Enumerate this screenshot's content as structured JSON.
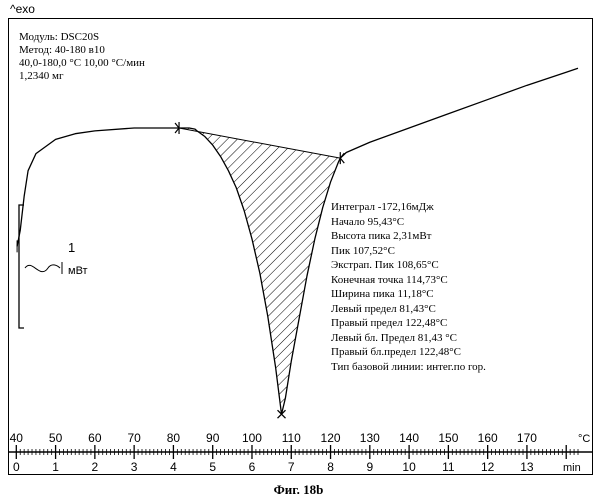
{
  "header": {
    "exo_label": "^exo"
  },
  "info": {
    "module": "Модуль:   DSC20S",
    "method": "Метод:  40-180 в10",
    "range": "40,0-180,0 °C 10,00 °C/мин",
    "mass": "1,2340 мг"
  },
  "scale_bar": {
    "value": "1",
    "unit": "мВт"
  },
  "results": [
    "Интеграл    -172,16мДж",
    "Начало          95,43°C",
    "Высота пика  2,31мВт",
    "Пик               107,52°C",
    "Экстрап. Пик  108,65°C",
    "Конечная точка 114,73°C",
    "Ширина пика      11,18°C",
    "Левый предел  81,43°C",
    "Правый предел  122,48°C",
    "Левый бл. Предел 81,43 °C",
    "Правый бл.предел  122,48°C",
    "Тип базовой линии:  интег.по гор."
  ],
  "caption": "Фиг. 18b",
  "chart_data": {
    "type": "line",
    "x_temp_label": "°C",
    "x_time_label": "min",
    "temp_ticks": [
      40,
      50,
      60,
      70,
      80,
      90,
      100,
      110,
      120,
      130,
      140,
      150,
      160,
      170
    ],
    "time_ticks": [
      0,
      1,
      2,
      3,
      4,
      5,
      6,
      7,
      8,
      9,
      10,
      11,
      12,
      13
    ],
    "xlim": [
      40,
      183
    ],
    "integration_limits": [
      81.43,
      122.48
    ],
    "peak_temperature": 107.52,
    "curve": {
      "x": [
        40.2,
        41,
        42,
        43,
        45,
        50,
        55,
        60,
        70,
        80,
        84,
        85.5,
        86,
        88,
        90,
        92,
        94,
        96,
        98,
        100,
        102,
        104,
        106,
        107.52,
        108.5,
        110,
        112,
        114,
        116,
        118,
        120,
        122,
        122.48,
        124,
        130,
        140,
        150,
        160,
        170,
        180,
        183
      ],
      "y": [
        -2.08,
        -1.8,
        -1.2,
        -0.75,
        -0.45,
        -0.2,
        -0.1,
        -0.05,
        0.0,
        0.0,
        0.0,
        -0.02,
        -0.05,
        -0.15,
        -0.3,
        -0.5,
        -0.75,
        -1.05,
        -1.45,
        -1.95,
        -2.55,
        -3.3,
        -4.2,
        -5.03,
        -4.75,
        -4.1,
        -3.35,
        -2.6,
        -1.95,
        -1.4,
        -0.95,
        -0.6,
        -0.53,
        -0.43,
        -0.25,
        0.0,
        0.25,
        0.5,
        0.75,
        0.98,
        1.05
      ]
    }
  }
}
